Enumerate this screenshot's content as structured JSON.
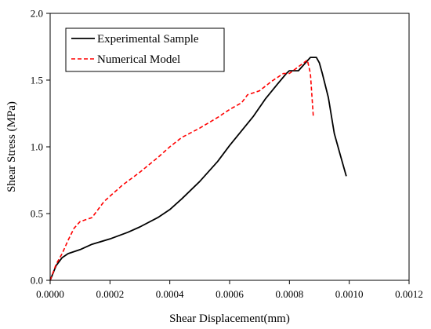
{
  "chart_data": {
    "type": "line",
    "xlabel": "Shear Displacement(mm)",
    "ylabel": "Shear Stress (MPa)",
    "xlim": [
      0,
      0.0012
    ],
    "ylim": [
      0,
      2.0
    ],
    "x_ticks": [
      "0.0000",
      "0.0002",
      "0.0004",
      "0.0006",
      "0.0008",
      "0.0010",
      "0.0012"
    ],
    "y_ticks": [
      "0.0",
      "0.5",
      "1.0",
      "1.5",
      "2.0"
    ],
    "grid": false,
    "legend_position": "top-left",
    "series": [
      {
        "name": "Experimental Sample",
        "color": "#000000",
        "dash": "solid",
        "points": [
          [
            0.0,
            0.0
          ],
          [
            2e-05,
            0.11
          ],
          [
            4e-05,
            0.17
          ],
          [
            6e-05,
            0.2
          ],
          [
            0.0001,
            0.23
          ],
          [
            0.00014,
            0.27
          ],
          [
            0.0002,
            0.31
          ],
          [
            0.00026,
            0.36
          ],
          [
            0.0003,
            0.4
          ],
          [
            0.00036,
            0.47
          ],
          [
            0.0004,
            0.53
          ],
          [
            0.00044,
            0.61
          ],
          [
            0.0005,
            0.74
          ],
          [
            0.00056,
            0.89
          ],
          [
            0.0006,
            1.01
          ],
          [
            0.00064,
            1.12
          ],
          [
            0.00068,
            1.23
          ],
          [
            0.00072,
            1.36
          ],
          [
            0.00076,
            1.47
          ],
          [
            0.00079,
            1.55
          ],
          [
            0.0008,
            1.57
          ],
          [
            0.00083,
            1.57
          ],
          [
            0.00085,
            1.62
          ],
          [
            0.00087,
            1.67
          ],
          [
            0.00089,
            1.67
          ],
          [
            0.0009,
            1.63
          ],
          [
            0.00091,
            1.55
          ],
          [
            0.00093,
            1.37
          ],
          [
            0.00095,
            1.1
          ],
          [
            0.00097,
            0.94
          ],
          [
            0.00099,
            0.78
          ]
        ]
      },
      {
        "name": "Numerical Model",
        "color": "#ff0000",
        "dash": "dashed",
        "points": [
          [
            0.0,
            0.0
          ],
          [
            2e-05,
            0.12
          ],
          [
            4e-05,
            0.2
          ],
          [
            6e-05,
            0.3
          ],
          [
            8e-05,
            0.39
          ],
          [
            0.0001,
            0.44
          ],
          [
            0.00014,
            0.47
          ],
          [
            0.00016,
            0.53
          ],
          [
            0.00018,
            0.59
          ],
          [
            0.0002,
            0.63
          ],
          [
            0.00024,
            0.71
          ],
          [
            0.0003,
            0.81
          ],
          [
            0.00036,
            0.92
          ],
          [
            0.0004,
            1.0
          ],
          [
            0.00044,
            1.07
          ],
          [
            0.0005,
            1.14
          ],
          [
            0.00056,
            1.22
          ],
          [
            0.0006,
            1.28
          ],
          [
            0.00064,
            1.33
          ],
          [
            0.00066,
            1.39
          ],
          [
            0.0007,
            1.42
          ],
          [
            0.00074,
            1.49
          ],
          [
            0.00078,
            1.55
          ],
          [
            0.0008,
            1.55
          ],
          [
            0.00083,
            1.6
          ],
          [
            0.00086,
            1.65
          ],
          [
            0.00087,
            1.55
          ],
          [
            0.00088,
            1.22
          ]
        ]
      }
    ]
  }
}
